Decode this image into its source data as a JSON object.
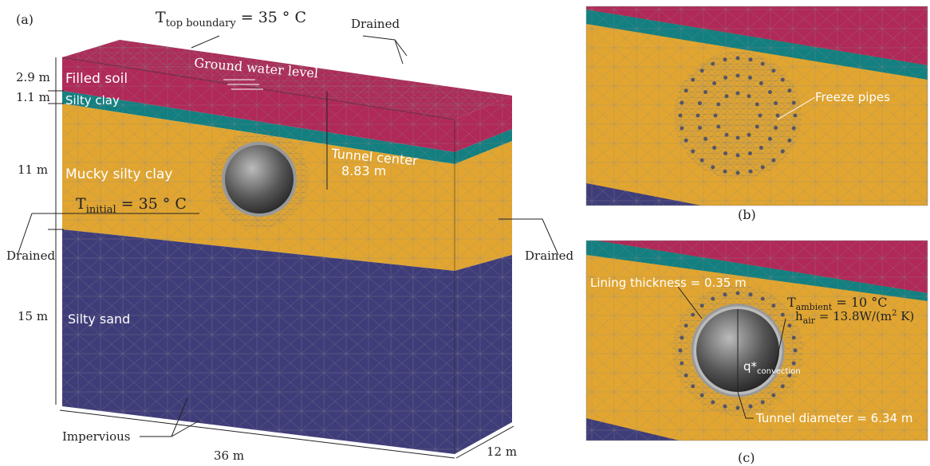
{
  "panel_a": {
    "label": "(a)",
    "top_boundary": {
      "symbol": "T",
      "subscript": "top boundary",
      "text": " = 35 ° C"
    },
    "layers": [
      {
        "name": "Filled soil",
        "thickness": "2.9 m"
      },
      {
        "name": "Silty clay",
        "thickness": "1.1 m"
      },
      {
        "name": "Mucky silty clay",
        "thickness": "11 m"
      },
      {
        "name": "Silty sand",
        "thickness": "15 m"
      }
    ],
    "width": "36 m",
    "depth": "12 m",
    "ground_water_level": "Ground water level",
    "tunnel_center": {
      "label": "Tunnel center",
      "value": "8.83 m"
    },
    "initial": {
      "symbol": "T",
      "subscript": "initial",
      "text": " = 35 ° C"
    },
    "drained_labels": [
      "Drained",
      "Drained",
      "Drained"
    ],
    "impervious": "Impervious"
  },
  "panel_b": {
    "label": "(b)",
    "freeze_pipes": "Freeze pipes"
  },
  "panel_c": {
    "label": "(c)",
    "lining": "Lining thickness = 0.35 m",
    "ambient": {
      "symbol": "T",
      "subscript": "ambient",
      "text": " = 10 °C"
    },
    "air": {
      "symbol": "h",
      "subscript": "air",
      "text": " = 13.8W/(m",
      "sup": "2",
      "end": " K)"
    },
    "flux": {
      "symbol": "q*",
      "subscript": "convection"
    },
    "diameter": "Tunnel diameter = 6.34 m"
  }
}
